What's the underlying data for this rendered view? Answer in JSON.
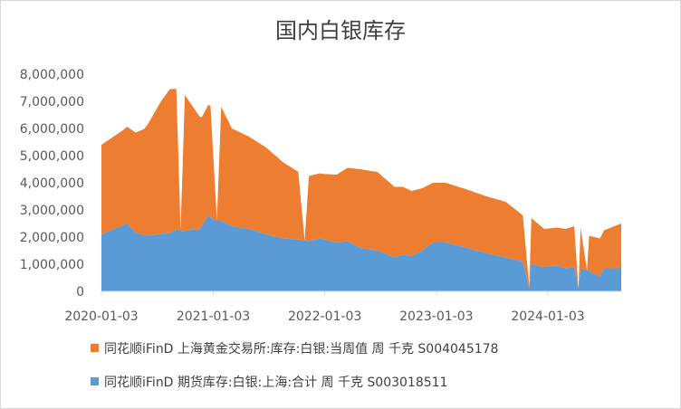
{
  "chart_data": {
    "type": "area",
    "stacked": true,
    "title": "国内白银库存",
    "y_ticks": [
      "0",
      "1,000,000",
      "2,000,000",
      "3,000,000",
      "4,000,000",
      "5,000,000",
      "6,000,000",
      "7,000,000",
      "8,000,000"
    ],
    "ylim": [
      0,
      8000000
    ],
    "x_ticks": [
      "2020-01-03",
      "2021-01-03",
      "2022-01-03",
      "2023-01-03",
      "2024-01-03"
    ],
    "x_range": [
      "2020-01-03",
      "2024-08-30"
    ],
    "grid": false,
    "legend_position": "bottom",
    "series": [
      {
        "name": "同花顺iFinD 期货库存:白银:上海:合计 周 千克 S003018511",
        "color": "#5b9bd5",
        "points": [
          [
            "2020-01-03",
            2100000
          ],
          [
            "2020-02-14",
            2300000
          ],
          [
            "2020-03-27",
            2500000
          ],
          [
            "2020-04-24",
            2150000
          ],
          [
            "2020-06-05",
            2050000
          ],
          [
            "2020-07-03",
            2100000
          ],
          [
            "2020-08-14",
            2150000
          ],
          [
            "2020-09-11",
            2300000
          ],
          [
            "2020-09-25",
            2200000
          ],
          [
            "2020-10-09",
            2250000
          ],
          [
            "2020-11-20",
            2300000
          ],
          [
            "2020-12-18",
            2800000
          ],
          [
            "2021-01-01",
            2650000
          ],
          [
            "2021-01-29",
            2600000
          ],
          [
            "2021-03-05",
            2400000
          ],
          [
            "2021-04-30",
            2300000
          ],
          [
            "2021-06-25",
            2100000
          ],
          [
            "2021-08-20",
            1950000
          ],
          [
            "2021-10-15",
            1900000
          ],
          [
            "2021-11-12",
            1850000
          ],
          [
            "2021-12-17",
            1950000
          ],
          [
            "2022-02-11",
            1800000
          ],
          [
            "2022-03-18",
            1850000
          ],
          [
            "2022-04-29",
            1600000
          ],
          [
            "2022-06-24",
            1500000
          ],
          [
            "2022-08-19",
            1250000
          ],
          [
            "2022-09-16",
            1350000
          ],
          [
            "2022-10-14",
            1300000
          ],
          [
            "2022-11-18",
            1500000
          ],
          [
            "2022-12-23",
            1800000
          ],
          [
            "2023-02-03",
            1800000
          ],
          [
            "2023-04-14",
            1600000
          ],
          [
            "2023-06-16",
            1400000
          ],
          [
            "2023-08-18",
            1250000
          ],
          [
            "2023-10-13",
            1100000
          ],
          [
            "2023-11-03",
            100000
          ],
          [
            "2023-11-10",
            1000000
          ],
          [
            "2023-12-22",
            900000
          ],
          [
            "2024-02-02",
            950000
          ],
          [
            "2024-03-01",
            850000
          ],
          [
            "2024-03-29",
            900000
          ],
          [
            "2024-04-12",
            100000
          ],
          [
            "2024-04-19",
            850000
          ],
          [
            "2024-05-17",
            750000
          ],
          [
            "2024-06-21",
            550000
          ],
          [
            "2024-07-05",
            850000
          ],
          [
            "2024-08-30",
            850000
          ]
        ]
      },
      {
        "name": "同花顺iFinD 上海黄金交易所:库存:白银:当周值 周 千克 S004045178",
        "color": "#ed7d31",
        "points": [
          [
            "2020-01-03",
            3300000
          ],
          [
            "2020-02-07",
            3400000
          ],
          [
            "2020-03-13",
            3500000
          ],
          [
            "2020-04-03",
            3600000
          ],
          [
            "2020-04-24",
            3700000
          ],
          [
            "2020-05-22",
            3900000
          ],
          [
            "2020-06-19",
            4400000
          ],
          [
            "2020-07-17",
            4900000
          ],
          [
            "2020-08-14",
            5300000
          ],
          [
            "2020-09-04",
            5200000
          ],
          [
            "2020-09-18",
            0
          ],
          [
            "2020-10-02",
            5000000
          ],
          [
            "2020-10-30",
            4500000
          ],
          [
            "2020-11-27",
            4000000
          ],
          [
            "2020-12-25",
            4100000
          ],
          [
            "2021-01-15",
            0
          ],
          [
            "2021-01-29",
            4200000
          ],
          [
            "2021-03-05",
            3600000
          ],
          [
            "2021-04-30",
            3400000
          ],
          [
            "2021-06-25",
            3200000
          ],
          [
            "2021-08-20",
            2800000
          ],
          [
            "2021-10-08",
            2500000
          ],
          [
            "2021-10-29",
            0
          ],
          [
            "2021-11-12",
            2400000
          ],
          [
            "2021-12-24",
            2400000
          ],
          [
            "2022-02-11",
            2500000
          ],
          [
            "2022-03-18",
            2700000
          ],
          [
            "2022-04-29",
            2900000
          ],
          [
            "2022-06-24",
            2900000
          ],
          [
            "2022-08-19",
            2600000
          ],
          [
            "2022-10-14",
            2400000
          ],
          [
            "2022-12-23",
            2200000
          ],
          [
            "2023-02-03",
            2200000
          ],
          [
            "2023-04-14",
            2150000
          ],
          [
            "2023-06-16",
            2100000
          ],
          [
            "2023-08-18",
            2050000
          ],
          [
            "2023-10-13",
            1700000
          ],
          [
            "2023-11-03",
            100000
          ],
          [
            "2023-11-10",
            1700000
          ],
          [
            "2023-12-22",
            1400000
          ],
          [
            "2024-02-02",
            1400000
          ],
          [
            "2024-03-29",
            1500000
          ],
          [
            "2024-04-12",
            0
          ],
          [
            "2024-04-19",
            1500000
          ],
          [
            "2024-05-10",
            0
          ],
          [
            "2024-05-17",
            1300000
          ],
          [
            "2024-06-21",
            1400000
          ],
          [
            "2024-07-05",
            1400000
          ],
          [
            "2024-08-30",
            1650000
          ]
        ]
      }
    ]
  }
}
